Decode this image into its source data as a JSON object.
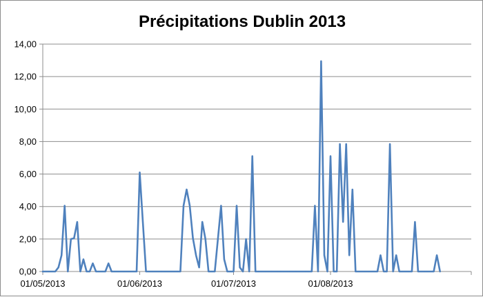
{
  "chart_data": {
    "type": "line",
    "title": "Précipitations Dublin 2013",
    "xlabel": "",
    "ylabel": "",
    "ylim": [
      0,
      14
    ],
    "y_ticks": [
      "0,00",
      "2,00",
      "4,00",
      "6,00",
      "8,00",
      "10,00",
      "12,00",
      "14,00"
    ],
    "x_tick_labels": [
      "01/05/2013",
      "01/06/2013",
      "01/07/2013",
      "01/08/2013"
    ],
    "x_range": [
      "01/05/2013",
      "15/09/2013"
    ],
    "grid": {
      "horizontal": true,
      "vertical": false
    },
    "legend": "none",
    "series": [
      {
        "color": "#4f81bd",
        "points": [
          [
            "01/05/2013",
            0
          ],
          [
            "02/05/2013",
            0
          ],
          [
            "03/05/2013",
            0
          ],
          [
            "04/05/2013",
            0
          ],
          [
            "05/05/2013",
            0
          ],
          [
            "06/05/2013",
            0.25
          ],
          [
            "07/05/2013",
            1.0
          ],
          [
            "08/05/2013",
            4.05
          ],
          [
            "09/05/2013",
            0
          ],
          [
            "10/05/2013",
            2.0
          ],
          [
            "11/05/2013",
            2.05
          ],
          [
            "12/05/2013",
            3.05
          ],
          [
            "13/05/2013",
            0
          ],
          [
            "14/05/2013",
            0.75
          ],
          [
            "15/05/2013",
            0
          ],
          [
            "16/05/2013",
            0
          ],
          [
            "17/05/2013",
            0.5
          ],
          [
            "18/05/2013",
            0
          ],
          [
            "19/05/2013",
            0
          ],
          [
            "20/05/2013",
            0
          ],
          [
            "21/05/2013",
            0
          ],
          [
            "22/05/2013",
            0.5
          ],
          [
            "23/05/2013",
            0
          ],
          [
            "24/05/2013",
            0
          ],
          [
            "25/05/2013",
            0
          ],
          [
            "26/05/2013",
            0
          ],
          [
            "27/05/2013",
            0
          ],
          [
            "28/05/2013",
            0
          ],
          [
            "29/05/2013",
            0
          ],
          [
            "30/05/2013",
            0
          ],
          [
            "31/05/2013",
            0
          ],
          [
            "01/06/2013",
            6.1
          ],
          [
            "02/06/2013",
            3.0
          ],
          [
            "03/06/2013",
            0
          ],
          [
            "04/06/2013",
            0
          ],
          [
            "05/06/2013",
            0
          ],
          [
            "06/06/2013",
            0
          ],
          [
            "07/06/2013",
            0
          ],
          [
            "08/06/2013",
            0
          ],
          [
            "09/06/2013",
            0
          ],
          [
            "10/06/2013",
            0
          ],
          [
            "11/06/2013",
            0
          ],
          [
            "12/06/2013",
            0
          ],
          [
            "13/06/2013",
            0
          ],
          [
            "14/06/2013",
            0
          ],
          [
            "15/06/2013",
            4.05
          ],
          [
            "16/06/2013",
            5.05
          ],
          [
            "17/06/2013",
            4.05
          ],
          [
            "18/06/2013",
            2.05
          ],
          [
            "19/06/2013",
            1.0
          ],
          [
            "20/06/2013",
            0.25
          ],
          [
            "21/06/2013",
            3.05
          ],
          [
            "22/06/2013",
            2.0
          ],
          [
            "23/06/2013",
            0
          ],
          [
            "24/06/2013",
            0
          ],
          [
            "25/06/2013",
            0
          ],
          [
            "26/06/2013",
            2.0
          ],
          [
            "27/06/2013",
            4.05
          ],
          [
            "28/06/2013",
            0.75
          ],
          [
            "29/06/2013",
            0
          ],
          [
            "30/06/2013",
            0
          ],
          [
            "01/07/2013",
            0
          ],
          [
            "02/07/2013",
            4.05
          ],
          [
            "03/07/2013",
            0.25
          ],
          [
            "04/07/2013",
            0
          ],
          [
            "05/07/2013",
            2.0
          ],
          [
            "06/07/2013",
            0
          ],
          [
            "07/07/2013",
            7.1
          ],
          [
            "08/07/2013",
            0
          ],
          [
            "09/07/2013",
            0
          ],
          [
            "10/07/2013",
            0
          ],
          [
            "11/07/2013",
            0
          ],
          [
            "12/07/2013",
            0
          ],
          [
            "13/07/2013",
            0
          ],
          [
            "14/07/2013",
            0
          ],
          [
            "15/07/2013",
            0
          ],
          [
            "16/07/2013",
            0
          ],
          [
            "17/07/2013",
            0
          ],
          [
            "18/07/2013",
            0
          ],
          [
            "19/07/2013",
            0
          ],
          [
            "20/07/2013",
            0
          ],
          [
            "21/07/2013",
            0
          ],
          [
            "22/07/2013",
            0
          ],
          [
            "23/07/2013",
            0
          ],
          [
            "24/07/2013",
            0
          ],
          [
            "25/07/2013",
            0
          ],
          [
            "26/07/2013",
            0
          ],
          [
            "27/07/2013",
            4.05
          ],
          [
            "28/07/2013",
            0
          ],
          [
            "29/07/2013",
            12.95
          ],
          [
            "30/07/2013",
            1.0
          ],
          [
            "31/07/2013",
            0
          ],
          [
            "01/08/2013",
            7.1
          ],
          [
            "02/08/2013",
            0
          ],
          [
            "03/08/2013",
            0
          ],
          [
            "04/08/2013",
            7.85
          ],
          [
            "05/08/2013",
            3.05
          ],
          [
            "06/08/2013",
            7.85
          ],
          [
            "07/08/2013",
            1.0
          ],
          [
            "08/08/2013",
            5.05
          ],
          [
            "09/08/2013",
            0
          ],
          [
            "10/08/2013",
            0
          ],
          [
            "11/08/2013",
            0
          ],
          [
            "12/08/2013",
            0
          ],
          [
            "13/08/2013",
            0
          ],
          [
            "14/08/2013",
            0
          ],
          [
            "15/08/2013",
            0
          ],
          [
            "16/08/2013",
            0
          ],
          [
            "17/08/2013",
            1.0
          ],
          [
            "18/08/2013",
            0
          ],
          [
            "19/08/2013",
            0
          ],
          [
            "20/08/2013",
            7.85
          ],
          [
            "21/08/2013",
            0
          ],
          [
            "22/08/2013",
            1.0
          ],
          [
            "23/08/2013",
            0
          ],
          [
            "24/08/2013",
            0
          ],
          [
            "25/08/2013",
            0
          ],
          [
            "26/08/2013",
            0
          ],
          [
            "27/08/2013",
            0
          ],
          [
            "28/08/2013",
            3.05
          ],
          [
            "29/08/2013",
            0
          ],
          [
            "30/08/2013",
            0
          ],
          [
            "31/08/2013",
            0
          ],
          [
            "01/09/2013",
            0
          ],
          [
            "02/09/2013",
            0
          ],
          [
            "03/09/2013",
            0
          ],
          [
            "04/09/2013",
            1.0
          ],
          [
            "05/09/2013",
            0
          ]
        ]
      }
    ]
  }
}
